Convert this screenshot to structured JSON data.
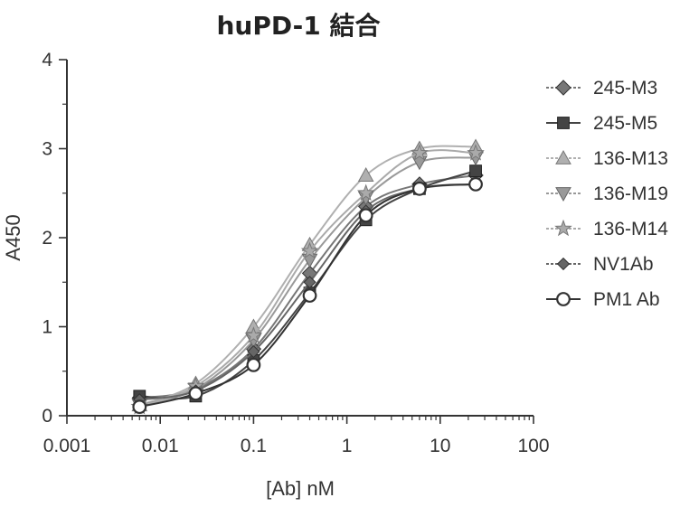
{
  "chart_data": {
    "type": "line",
    "title": "huPD-1 結合",
    "xlabel": "[Ab] nM",
    "ylabel": "A450",
    "xscale": "log",
    "xlim": [
      0.001,
      100
    ],
    "ylim": [
      0,
      4
    ],
    "x_tick_labels": [
      "0.001",
      "0.01",
      "0.1",
      "1",
      "10",
      "100"
    ],
    "y_tick_labels": [
      "0",
      "1",
      "2",
      "3",
      "4"
    ],
    "legend_position": "right",
    "grid": false,
    "x": [
      0.006,
      0.024,
      0.1,
      0.4,
      1.6,
      6.0,
      24.0
    ],
    "series": [
      {
        "name": "245-M3",
        "marker": "diamond-filled",
        "color": "#777777",
        "values": [
          0.2,
          0.3,
          0.75,
          1.6,
          2.35,
          2.6,
          2.7
        ]
      },
      {
        "name": "245-M5",
        "marker": "square-filled",
        "color": "#444444",
        "values": [
          0.22,
          0.22,
          0.62,
          1.38,
          2.2,
          2.55,
          2.75
        ]
      },
      {
        "name": "136-M13",
        "marker": "triangle-up",
        "color": "#b0b0b0",
        "values": [
          0.12,
          0.36,
          1.0,
          1.92,
          2.7,
          3.0,
          3.02
        ]
      },
      {
        "name": "136-M19",
        "marker": "triangle-down",
        "color": "#999999",
        "values": [
          0.12,
          0.3,
          0.85,
          1.75,
          2.45,
          2.85,
          2.9
        ]
      },
      {
        "name": "136-M14",
        "marker": "star",
        "color": "#aaaaaa",
        "values": [
          0.1,
          0.33,
          0.9,
          1.85,
          2.5,
          2.95,
          2.95
        ]
      },
      {
        "name": "NV1Ab",
        "marker": "diamond-small",
        "color": "#666666",
        "values": [
          0.18,
          0.28,
          0.72,
          1.5,
          2.3,
          2.55,
          2.6
        ]
      },
      {
        "name": "PM1 Ab",
        "marker": "circle-open",
        "color": "#333333",
        "values": [
          0.1,
          0.25,
          0.57,
          1.35,
          2.25,
          2.55,
          2.6
        ]
      }
    ]
  }
}
